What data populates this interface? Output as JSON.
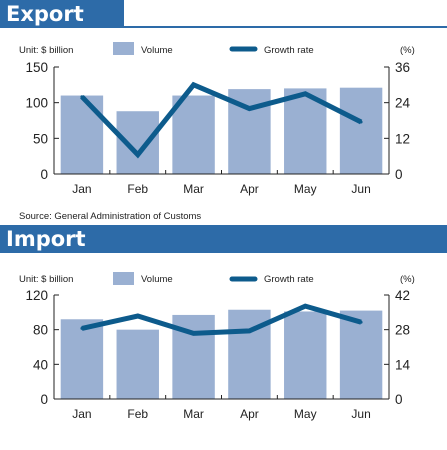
{
  "colors": {
    "banner": "#2d6ba8",
    "bar": "#9ab0d2",
    "line": "#0d5b8c",
    "axis": "#222222"
  },
  "source": "Source: General Administration of Customs",
  "chart_data": [
    {
      "type": "bar",
      "title": "Export",
      "unit_left": "Unit: $ billion",
      "unit_right": "(%)",
      "categories": [
        "Jan",
        "Feb",
        "Mar",
        "Apr",
        "May",
        "Jun"
      ],
      "series": [
        {
          "name": "Volume",
          "kind": "bar",
          "axis": "left",
          "values": [
            110,
            88,
            110,
            119,
            120,
            121
          ]
        },
        {
          "name": "Growth rate",
          "kind": "line",
          "axis": "right",
          "values": [
            26,
            6.5,
            30,
            22,
            27,
            17.5
          ]
        }
      ],
      "ylim_left": [
        0,
        150
      ],
      "ylim_right": [
        0,
        36
      ],
      "yticks_left": [
        "0",
        "50",
        "100",
        "150"
      ],
      "yticks_right": [
        "0",
        "12",
        "24",
        "36"
      ],
      "legend_position": "top"
    },
    {
      "type": "bar",
      "title": "Import",
      "unit_left": "Unit: $ billion",
      "unit_right": "(%)",
      "categories": [
        "Jan",
        "Feb",
        "Mar",
        "Apr",
        "May",
        "Jun"
      ],
      "series": [
        {
          "name": "Volume",
          "kind": "bar",
          "axis": "left",
          "values": [
            92,
            80,
            97,
            103,
            101,
            102
          ]
        },
        {
          "name": "Growth rate",
          "kind": "line",
          "axis": "right",
          "values": [
            28.5,
            33.5,
            26.5,
            27.5,
            37.5,
            31
          ]
        }
      ],
      "ylim_left": [
        0,
        120
      ],
      "ylim_right": [
        0,
        42
      ],
      "yticks_left": [
        "0",
        "40",
        "80",
        "120"
      ],
      "yticks_right": [
        "0",
        "14",
        "28",
        "42"
      ],
      "legend_position": "top"
    }
  ]
}
